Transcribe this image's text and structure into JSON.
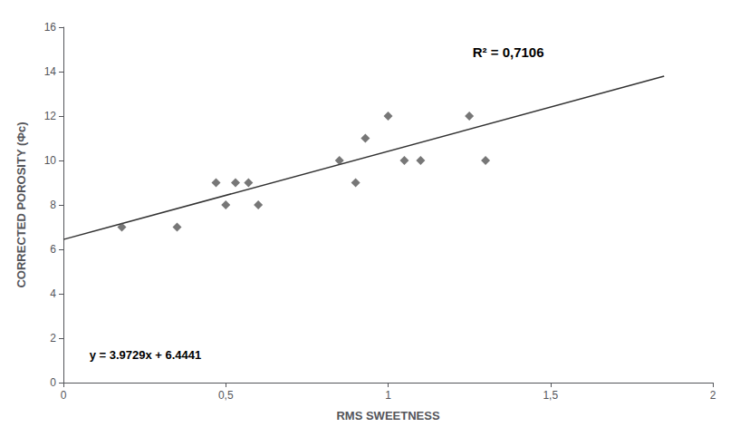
{
  "chart_data": {
    "type": "scatter",
    "xlabel": "RMS SWEETNESS",
    "ylabel": "CORRECTED POROSITY (Φc)",
    "annotations": [
      "y = 3.9729x + 6.4441",
      "R² = 0,7106"
    ],
    "series": [
      {
        "type": "scatter",
        "color": "#555555",
        "marker": "diamond",
        "x": [
          0.18,
          0.35,
          0.47,
          0.5,
          0.53,
          0.57,
          0.6,
          0.85,
          0.9,
          0.93,
          1.0,
          1.05,
          1.1,
          1.25,
          1.3
        ],
        "values": [
          7.0,
          7.0,
          9.0,
          8.0,
          9.0,
          9.0,
          8.0,
          10.0,
          9.0,
          11.0,
          12.0,
          10.0,
          10.0,
          12.0,
          10.0
        ]
      },
      {
        "type": "line",
        "color": "#333333",
        "line_style": "solid",
        "x": [
          0.0,
          1.85
        ],
        "values": [
          6.4441,
          13.793965
        ]
      }
    ],
    "xlim": [
      0,
      2
    ],
    "xticks": [
      0,
      {
        "value": 0.5,
        "label": "0,5"
      },
      1,
      {
        "value": 1.5,
        "label": "1,5"
      },
      2
    ],
    "ylim": [
      0,
      16
    ],
    "yticks": [
      0,
      2,
      4,
      6,
      8,
      10,
      12,
      14,
      16
    ],
    "grid": false
  }
}
